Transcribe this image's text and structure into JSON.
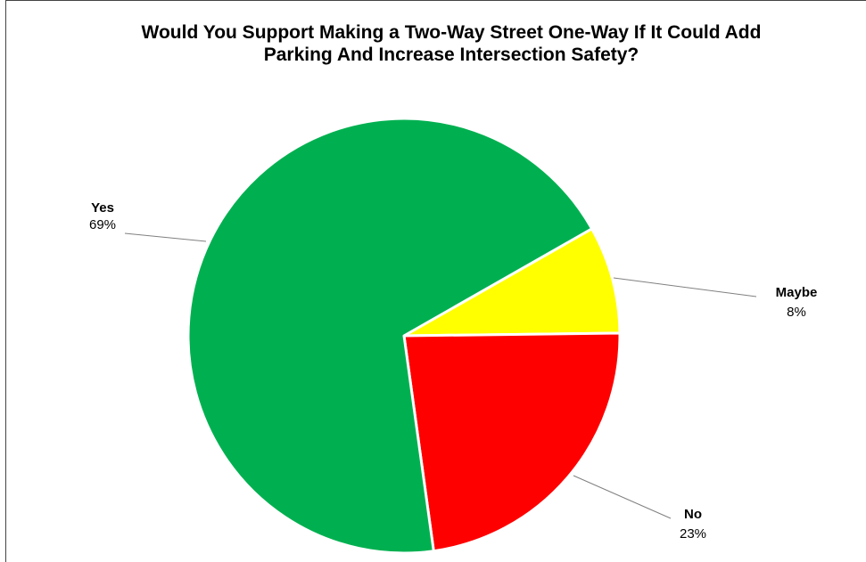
{
  "chart_data": {
    "type": "pie",
    "title_lines": [
      "Would You Support Making a Two-Way Street One-Way If It Could Add",
      "Parking And Increase Intersection Safety?"
    ],
    "slices": [
      {
        "label": "Yes",
        "value": 69,
        "value_label": "69%",
        "color": "#00b050"
      },
      {
        "label": "Maybe",
        "value": 8,
        "value_label": "8%",
        "color": "#ffff00"
      },
      {
        "label": "No",
        "value": 23,
        "value_label": "23%",
        "color": "#ff0000"
      }
    ]
  }
}
